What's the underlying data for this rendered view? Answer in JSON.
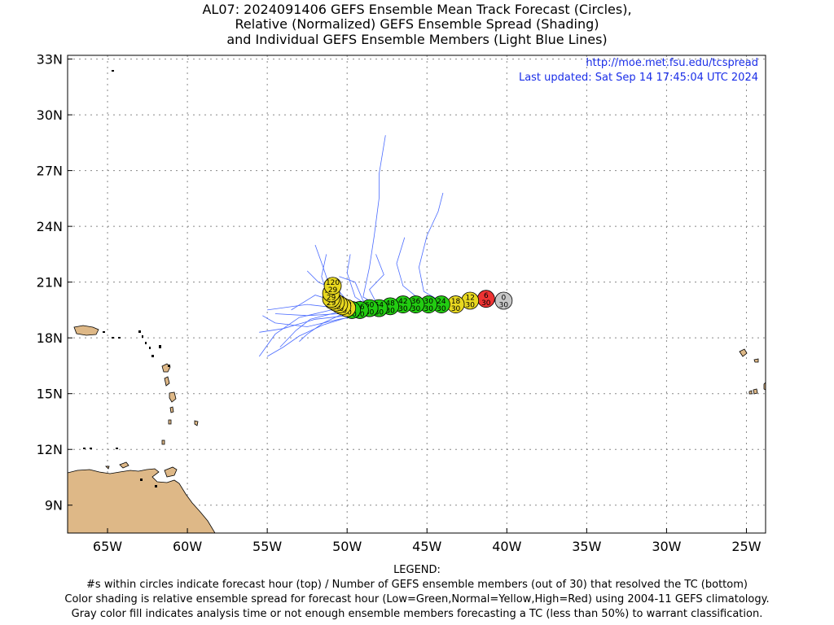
{
  "titles": {
    "line1": "AL07: 2024091406 GEFS Ensemble Mean Track Forecast (Circles),",
    "line2": "Relative (Normalized) GEFS Ensemble Spread (Shading)",
    "line3": "and Individual GEFS Ensemble Members (Light Blue Lines)"
  },
  "info": {
    "url": "http://moe.met.fsu.edu/tcspread",
    "updated": "Last updated: Sat Sep 14 17:45:04 UTC 2024"
  },
  "map": {
    "lon_range": [
      -67.5,
      -23.8
    ],
    "lat_range": [
      7.5,
      33.2
    ],
    "lon_ticks": [
      {
        "value": -65,
        "label": "65W"
      },
      {
        "value": -60,
        "label": "60W"
      },
      {
        "value": -55,
        "label": "55W"
      },
      {
        "value": -50,
        "label": "50W"
      },
      {
        "value": -45,
        "label": "45W"
      },
      {
        "value": -40,
        "label": "40W"
      },
      {
        "value": -35,
        "label": "35W"
      },
      {
        "value": -30,
        "label": "30W"
      },
      {
        "value": -25,
        "label": "25W"
      }
    ],
    "lat_ticks": [
      {
        "value": 9,
        "label": "9N"
      },
      {
        "value": 12,
        "label": "12N"
      },
      {
        "value": 15,
        "label": "15N"
      },
      {
        "value": 18,
        "label": "18N"
      },
      {
        "value": 21,
        "label": "21N"
      },
      {
        "value": 24,
        "label": "24N"
      },
      {
        "value": 27,
        "label": "27N"
      },
      {
        "value": 30,
        "label": "30N"
      },
      {
        "value": 33,
        "label": "33N"
      }
    ],
    "colors": {
      "land": "#deb887",
      "member_lines": "#4a6bff",
      "low_spread": "#22cc11",
      "normal_spread": "#e8d820",
      "high_spread": "#ee3333",
      "analysis": "#c8c8c8"
    },
    "track_points": [
      {
        "hour": "0",
        "members": "30",
        "lon": -40.2,
        "lat": 20.0,
        "category": "gray"
      },
      {
        "hour": "6",
        "members": "30",
        "lon": -41.3,
        "lat": 20.1,
        "category": "red"
      },
      {
        "hour": "12",
        "members": "30",
        "lon": -42.3,
        "lat": 20.0,
        "category": "yellow"
      },
      {
        "hour": "18",
        "members": "30",
        "lon": -43.2,
        "lat": 19.8,
        "category": "yellow"
      },
      {
        "hour": "24",
        "members": "30",
        "lon": -44.1,
        "lat": 19.8,
        "category": "green"
      },
      {
        "hour": "30",
        "members": "30",
        "lon": -44.9,
        "lat": 19.8,
        "category": "green"
      },
      {
        "hour": "36",
        "members": "30",
        "lon": -45.7,
        "lat": 19.8,
        "category": "green"
      },
      {
        "hour": "42",
        "members": "30",
        "lon": -46.5,
        "lat": 19.8,
        "category": "green"
      },
      {
        "hour": "48",
        "members": "30",
        "lon": -47.3,
        "lat": 19.7,
        "category": "green"
      },
      {
        "hour": "54",
        "members": "30",
        "lon": -48.0,
        "lat": 19.6,
        "category": "green"
      },
      {
        "hour": "60",
        "members": "30",
        "lon": -48.6,
        "lat": 19.6,
        "category": "green"
      },
      {
        "hour": "66",
        "members": "30",
        "lon": -49.2,
        "lat": 19.5,
        "category": "green"
      },
      {
        "hour": "72",
        "members": "30",
        "lon": -49.7,
        "lat": 19.5,
        "category": "green"
      },
      {
        "hour": "78",
        "members": "30",
        "lon": -50.0,
        "lat": 19.6,
        "category": "yellow"
      },
      {
        "hour": "84",
        "members": "30",
        "lon": -50.3,
        "lat": 19.7,
        "category": "yellow"
      },
      {
        "hour": "90",
        "members": "30",
        "lon": -50.5,
        "lat": 19.8,
        "category": "yellow"
      },
      {
        "hour": "96",
        "members": "30",
        "lon": -50.7,
        "lat": 19.9,
        "category": "yellow"
      },
      {
        "hour": "102",
        "members": "29",
        "lon": -50.9,
        "lat": 20.0,
        "category": "yellow"
      },
      {
        "hour": "108",
        "members": "29",
        "lon": -51.0,
        "lat": 20.1,
        "category": "yellow"
      },
      {
        "hour": "114",
        "members": "29",
        "lon": -51.0,
        "lat": 20.4,
        "category": "yellow"
      },
      {
        "hour": "120",
        "members": "29",
        "lon": -50.9,
        "lat": 20.8,
        "category": "yellow"
      }
    ],
    "member_tracks": [
      [
        [
          -40.3,
          20.0
        ],
        [
          -42.5,
          19.8
        ],
        [
          -45,
          19.7
        ],
        [
          -47.5,
          19.5
        ],
        [
          -50,
          19.2
        ],
        [
          -52,
          19.0
        ],
        [
          -54,
          18.5
        ],
        [
          -55.5,
          18.3
        ]
      ],
      [
        [
          -40.3,
          20.0
        ],
        [
          -43,
          19.8
        ],
        [
          -46,
          19.6
        ],
        [
          -48.5,
          19.4
        ],
        [
          -50.5,
          19.3
        ],
        [
          -52.5,
          19.2
        ],
        [
          -54.5,
          19.3
        ]
      ],
      [
        [
          -40.3,
          20.0
        ],
        [
          -43,
          19.9
        ],
        [
          -46,
          19.7
        ],
        [
          -48.5,
          19.5
        ],
        [
          -50.5,
          19.6
        ],
        [
          -52.5,
          19.8
        ],
        [
          -55,
          19.5
        ]
      ],
      [
        [
          -40.3,
          20.0
        ],
        [
          -43,
          19.9
        ],
        [
          -46,
          19.8
        ],
        [
          -48.5,
          19.7
        ],
        [
          -51,
          19.5
        ],
        [
          -53,
          19.1
        ],
        [
          -54.5,
          18.2
        ],
        [
          -55.5,
          17.0
        ]
      ],
      [
        [
          -40.3,
          20.0
        ],
        [
          -43,
          19.8
        ],
        [
          -46,
          19.6
        ],
        [
          -48,
          19.4
        ],
        [
          -50,
          19.1
        ],
        [
          -51.5,
          18.7
        ],
        [
          -53,
          18.1
        ],
        [
          -54,
          17.5
        ],
        [
          -55,
          17.0
        ]
      ],
      [
        [
          -40.3,
          20.0
        ],
        [
          -43,
          19.9
        ],
        [
          -46,
          19.7
        ],
        [
          -48.5,
          19.6
        ],
        [
          -50,
          19.8
        ],
        [
          -51,
          20.5
        ],
        [
          -51.5,
          21.8
        ],
        [
          -52,
          23.0
        ]
      ],
      [
        [
          -40.3,
          20.0
        ],
        [
          -43,
          19.9
        ],
        [
          -46,
          19.7
        ],
        [
          -48.5,
          19.6
        ],
        [
          -49.5,
          20.2
        ],
        [
          -50,
          21.5
        ],
        [
          -49.8,
          22.5
        ]
      ],
      [
        [
          -40.3,
          20.0
        ],
        [
          -43,
          19.9
        ],
        [
          -46,
          19.8
        ],
        [
          -48,
          19.7
        ],
        [
          -49,
          20.2
        ],
        [
          -48.6,
          21.8
        ],
        [
          -48.3,
          23.5
        ],
        [
          -48,
          25.5
        ],
        [
          -48.0,
          26.8
        ],
        [
          -47.6,
          28.9
        ]
      ],
      [
        [
          -40.3,
          20.0
        ],
        [
          -42,
          19.9
        ],
        [
          -44,
          19.9
        ],
        [
          -45.2,
          20.5
        ],
        [
          -45.5,
          21.8
        ],
        [
          -45.0,
          23.5
        ],
        [
          -44.3,
          24.8
        ],
        [
          -44.0,
          25.8
        ]
      ],
      [
        [
          -40.3,
          20.0
        ],
        [
          -43,
          20.0
        ],
        [
          -45.5,
          20.1
        ],
        [
          -46.5,
          20.8
        ],
        [
          -46.9,
          22.0
        ],
        [
          -46.4,
          23.4
        ]
      ],
      [
        [
          -40.3,
          20.0
        ],
        [
          -43,
          19.9
        ],
        [
          -46,
          19.7
        ],
        [
          -48,
          19.6
        ],
        [
          -48.6,
          20.6
        ],
        [
          -47.7,
          21.4
        ],
        [
          -48.2,
          22.5
        ]
      ],
      [
        [
          -40.3,
          20.0
        ],
        [
          -43,
          19.9
        ],
        [
          -46,
          19.7
        ],
        [
          -48.5,
          19.5
        ],
        [
          -50,
          19.5
        ],
        [
          -51.2,
          20.2
        ],
        [
          -51.6,
          21.3
        ],
        [
          -51.3,
          22.5
        ]
      ],
      [
        [
          -40.3,
          20.0
        ],
        [
          -43,
          19.8
        ],
        [
          -46,
          19.6
        ],
        [
          -48.5,
          19.3
        ],
        [
          -50.5,
          19.0
        ],
        [
          -52.5,
          18.6
        ],
        [
          -54.5,
          18.8
        ],
        [
          -55.3,
          19.2
        ]
      ],
      [
        [
          -40.3,
          20.0
        ],
        [
          -43,
          19.9
        ],
        [
          -46,
          19.7
        ],
        [
          -48.5,
          19.6
        ],
        [
          -50.5,
          19.9
        ],
        [
          -52,
          20.3
        ],
        [
          -53.5,
          19.5
        ]
      ],
      [
        [
          -40.3,
          20.0
        ],
        [
          -43,
          19.8
        ],
        [
          -46,
          19.6
        ],
        [
          -48.5,
          19.4
        ],
        [
          -50.5,
          19.4
        ],
        [
          -52.3,
          19.0
        ],
        [
          -53.2,
          18.4
        ],
        [
          -54.2,
          17.5
        ]
      ],
      [
        [
          -40.3,
          20.0
        ],
        [
          -43,
          19.8
        ],
        [
          -46,
          19.6
        ],
        [
          -48.5,
          19.5
        ],
        [
          -50.5,
          19.2
        ],
        [
          -51.5,
          18.8
        ],
        [
          -52.5,
          18.2
        ],
        [
          -53,
          17.8
        ]
      ],
      [
        [
          -40.3,
          20.0
        ],
        [
          -43,
          19.9
        ],
        [
          -46,
          19.7
        ],
        [
          -48.5,
          19.5
        ],
        [
          -49.8,
          19.8
        ],
        [
          -50.5,
          20.5
        ],
        [
          -51.8,
          21.0
        ],
        [
          -52.5,
          21.6
        ]
      ],
      [
        [
          -40.3,
          20.0
        ],
        [
          -43,
          19.9
        ],
        [
          -46,
          19.8
        ],
        [
          -48,
          19.7
        ],
        [
          -49,
          20.0
        ],
        [
          -49.5,
          21.0
        ],
        [
          -50.5,
          21.3
        ]
      ]
    ]
  },
  "legend": {
    "heading": "LEGEND:",
    "line1": "#s within circles indicate forecast hour (top) / Number of GEFS ensemble members (out of 30) that resolved the TC (bottom)",
    "line2": "Color shading is relative ensemble spread for forecast hour (Low=Green,Normal=Yellow,High=Red) using 2004-11 GEFS climatology.",
    "line3": "Gray color fill indicates analysis time or not enough ensemble members forecasting a TC (less than 50%) to warrant classification."
  }
}
